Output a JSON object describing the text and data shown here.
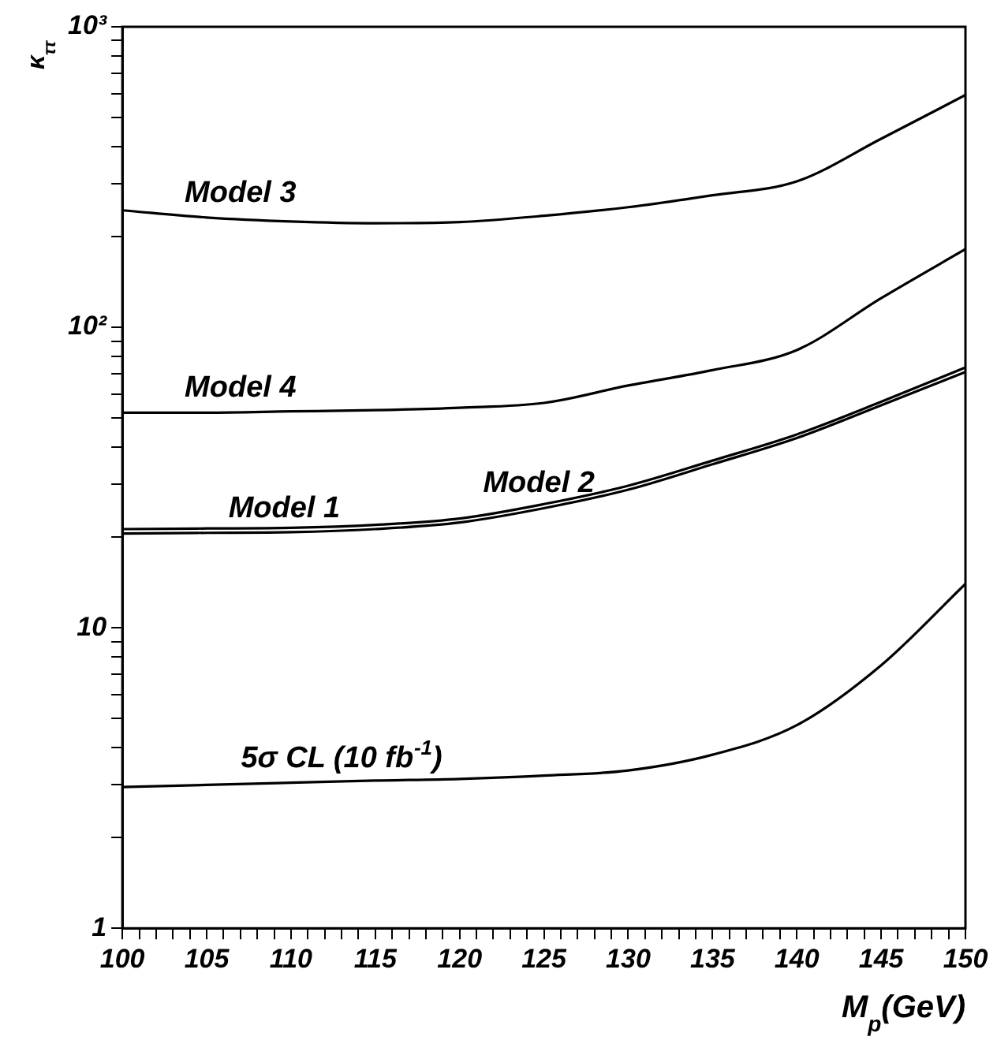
{
  "chart_data": {
    "type": "line",
    "xlabel": "M$_{p}$(GeV)",
    "ylabel": "κ$_{ττ}$",
    "log": true,
    "grid": false,
    "legend": false,
    "marker": "none",
    "line_style": "solid",
    "xlim": [
      100,
      150
    ],
    "xticks": [
      100,
      {
        "value": 101,
        "label": null
      },
      {
        "value": 102,
        "label": null
      },
      {
        "value": 103,
        "label": null
      },
      {
        "value": 104,
        "label": null
      },
      105,
      {
        "value": 106,
        "label": null
      },
      {
        "value": 107,
        "label": null
      },
      {
        "value": 108,
        "label": null
      },
      {
        "value": 109,
        "label": null
      },
      110,
      {
        "value": 111,
        "label": null
      },
      {
        "value": 112,
        "label": null
      },
      {
        "value": 113,
        "label": null
      },
      {
        "value": 114,
        "label": null
      },
      115,
      {
        "value": 116,
        "label": null
      },
      {
        "value": 117,
        "label": null
      },
      {
        "value": 118,
        "label": null
      },
      {
        "value": 119,
        "label": null
      },
      120,
      {
        "value": 121,
        "label": null
      },
      {
        "value": 122,
        "label": null
      },
      {
        "value": 123,
        "label": null
      },
      {
        "value": 124,
        "label": null
      },
      125,
      {
        "value": 126,
        "label": null
      },
      {
        "value": 127,
        "label": null
      },
      {
        "value": 128,
        "label": null
      },
      {
        "value": 129,
        "label": null
      },
      130,
      {
        "value": 131,
        "label": null
      },
      {
        "value": 132,
        "label": null
      },
      {
        "value": 133,
        "label": null
      },
      {
        "value": 134,
        "label": null
      },
      135,
      {
        "value": 136,
        "label": null
      },
      {
        "value": 137,
        "label": null
      },
      {
        "value": 138,
        "label": null
      },
      {
        "value": 139,
        "label": null
      },
      140,
      {
        "value": 141,
        "label": null
      },
      {
        "value": 142,
        "label": null
      },
      {
        "value": 143,
        "label": null
      },
      {
        "value": 144,
        "label": null
      },
      145,
      {
        "value": 146,
        "label": null
      },
      {
        "value": 147,
        "label": null
      },
      {
        "value": 148,
        "label": null
      },
      {
        "value": 149,
        "label": null
      },
      150
    ],
    "ylim": [
      1,
      1000
    ],
    "yticks": [
      1,
      {
        "value": 2,
        "label": null
      },
      {
        "value": 3,
        "label": null
      },
      {
        "value": 4,
        "label": null
      },
      {
        "value": 5,
        "label": null
      },
      {
        "value": 6,
        "label": null
      },
      {
        "value": 7,
        "label": null
      },
      {
        "value": 8,
        "label": null
      },
      {
        "value": 9,
        "label": null
      },
      10,
      {
        "value": 20,
        "label": null
      },
      {
        "value": 30,
        "label": null
      },
      {
        "value": 40,
        "label": null
      },
      {
        "value": 50,
        "label": null
      },
      {
        "value": 60,
        "label": null
      },
      {
        "value": 70,
        "label": null
      },
      {
        "value": 80,
        "label": null
      },
      {
        "value": 90,
        "label": null
      },
      {
        "value": 100,
        "label": "10²"
      },
      {
        "value": 200,
        "label": null
      },
      {
        "value": 300,
        "label": null
      },
      {
        "value": 400,
        "label": null
      },
      {
        "value": 500,
        "label": null
      },
      {
        "value": 600,
        "label": null
      },
      {
        "value": 700,
        "label": null
      },
      {
        "value": 800,
        "label": null
      },
      {
        "value": 900,
        "label": null
      },
      {
        "value": 1000,
        "label": "10³"
      }
    ],
    "x": [
      100,
      105,
      110,
      115,
      120,
      125,
      130,
      135,
      140,
      145,
      150
    ],
    "series": [
      {
        "color": "#000000",
        "values": [
          245,
          232,
          225,
          222,
          224,
          235,
          251,
          275,
          306,
          424,
          593
        ]
      },
      {
        "color": "#000000",
        "values": [
          52,
          52,
          52.5,
          53,
          54,
          56,
          64,
          72,
          84,
          125,
          182
        ]
      },
      {
        "color": "#000000",
        "values": [
          20.6,
          20.7,
          20.8,
          21.3,
          22.4,
          25,
          28.8,
          35,
          42.8,
          55,
          71
        ]
      },
      {
        "color": "#000000",
        "values": [
          21.3,
          21.4,
          21.5,
          22,
          23.1,
          25.8,
          29.7,
          36,
          44,
          56.5,
          73.5
        ]
      },
      {
        "color": "#000000",
        "values": [
          2.95,
          3.0,
          3.05,
          3.1,
          3.14,
          3.22,
          3.35,
          3.78,
          4.74,
          7.5,
          14
        ]
      }
    ],
    "annotations": [
      {
        "text": "Model 3",
        "x": 107,
        "y": 232
      },
      {
        "text": "Model 4",
        "x": 107,
        "y": 52
      },
      {
        "text": "Model 1",
        "x": 109.6,
        "y": 20.7
      },
      {
        "text": "Model 2",
        "x": 124.7,
        "y": 25
      },
      {
        "text": "5σ CL (10 fb$^{-1}$)",
        "x": 113,
        "y": 3.05
      }
    ]
  }
}
